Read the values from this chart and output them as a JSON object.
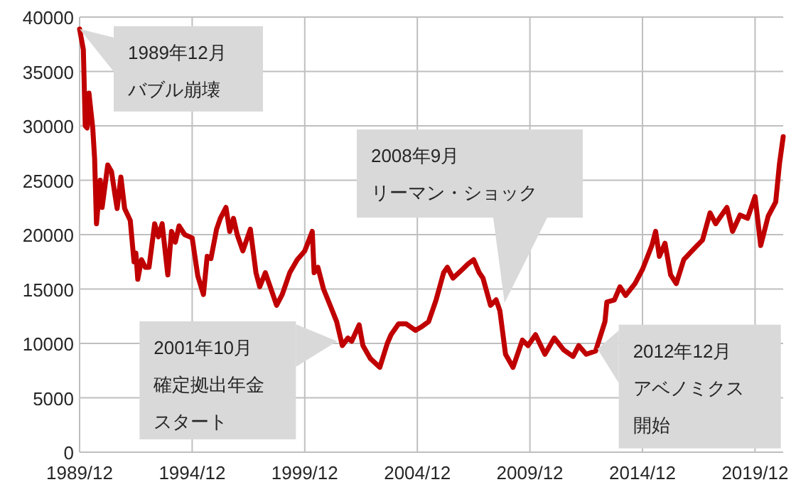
{
  "chart_data": {
    "type": "line",
    "x": [
      "1989-12",
      "1990-02",
      "1990-03",
      "1990-04",
      "1990-05",
      "1990-07",
      "1990-08",
      "1990-09",
      "1990-11",
      "1990-12",
      "1991-03",
      "1991-05",
      "1991-07",
      "1991-08",
      "1991-10",
      "1991-12",
      "1992-03",
      "1992-05",
      "1992-06",
      "1992-07",
      "1992-09",
      "1992-11",
      "1993-01",
      "1993-04",
      "1993-06",
      "1993-08",
      "1993-11",
      "1994-01",
      "1994-03",
      "1994-05",
      "1994-08",
      "1994-12",
      "1995-03",
      "1995-06",
      "1995-08",
      "1995-10",
      "1996-01",
      "1996-03",
      "1996-06",
      "1996-08",
      "1996-10",
      "1996-12",
      "1997-03",
      "1997-07",
      "1997-10",
      "1997-12",
      "1998-03",
      "1998-05",
      "1998-09",
      "1998-12",
      "1999-04",
      "1999-08",
      "1999-12",
      "2000-04",
      "2000-05",
      "2000-07",
      "2000-10",
      "2001-02",
      "2001-05",
      "2001-08",
      "2001-11",
      "2002-01",
      "2002-05",
      "2002-07",
      "2002-11",
      "2003-04",
      "2003-08",
      "2003-10",
      "2004-02",
      "2004-06",
      "2004-11",
      "2005-02",
      "2005-06",
      "2005-10",
      "2006-02",
      "2006-04",
      "2006-07",
      "2006-12",
      "2007-03",
      "2007-06",
      "2007-09",
      "2007-11",
      "2008-03",
      "2008-06",
      "2008-08",
      "2008-11",
      "2009-03",
      "2009-08",
      "2009-11",
      "2010-03",
      "2010-08",
      "2011-01",
      "2011-06",
      "2011-11",
      "2012-02",
      "2012-06",
      "2012-11",
      "2013-04",
      "2013-05",
      "2013-09",
      "2013-12",
      "2014-03",
      "2014-08",
      "2014-12",
      "2015-05",
      "2015-07",
      "2015-09",
      "2015-12",
      "2016-03",
      "2016-06",
      "2016-10",
      "2017-04",
      "2017-08",
      "2017-12",
      "2018-03",
      "2018-09",
      "2018-12",
      "2019-04",
      "2019-08",
      "2019-12",
      "2020-03",
      "2020-07",
      "2020-11",
      "2021-01",
      "2021-03"
    ],
    "series": [
      {
        "color": "#c00000",
        "values": [
          38900,
          37000,
          30000,
          29800,
          33000,
          29800,
          27000,
          21000,
          25000,
          22500,
          26400,
          25800,
          23500,
          22400,
          25300,
          22400,
          21300,
          17500,
          18300,
          15900,
          17700,
          17000,
          17000,
          21000,
          19800,
          21000,
          16300,
          20300,
          19300,
          20800,
          20000,
          19700,
          16200,
          14500,
          18000,
          17800,
          20500,
          21500,
          22500,
          20300,
          21500,
          20000,
          18500,
          20500,
          16500,
          15200,
          16500,
          15500,
          13500,
          14500,
          16500,
          17700,
          18500,
          20300,
          16500,
          17000,
          15000,
          13300,
          12000,
          9800,
          10500,
          10200,
          11700,
          9800,
          8600,
          7800,
          10000,
          10800,
          11800,
          11800,
          11200,
          11500,
          12000,
          14000,
          16500,
          17000,
          16000,
          16800,
          17300,
          17700,
          16500,
          16000,
          13500,
          14000,
          13000,
          9000,
          7800,
          10300,
          9800,
          10800,
          9000,
          10500,
          9400,
          8800,
          9800,
          9000,
          9300,
          12000,
          13800,
          14000,
          15200,
          14400,
          15500,
          16800,
          19000,
          20300,
          18000,
          19200,
          16300,
          15500,
          17700,
          18800,
          19500,
          22000,
          21000,
          22500,
          20300,
          21800,
          21500,
          23500,
          19000,
          21700,
          23000,
          26500,
          29000
        ]
      }
    ],
    "xlim": [
      "1989-12",
      "2021-03"
    ],
    "xticks": [
      {
        "value": "1989-12",
        "label": "1989/12"
      },
      {
        "value": "1994-12",
        "label": "1994/12"
      },
      {
        "value": "1999-12",
        "label": "1999/12"
      },
      {
        "value": "2004-12",
        "label": "2004/12"
      },
      {
        "value": "2009-12",
        "label": "2009/12"
      },
      {
        "value": "2014-12",
        "label": "2014/12"
      },
      {
        "value": "2019-12",
        "label": "2019/12"
      }
    ],
    "ylim": [
      0,
      40000
    ],
    "yticks": [
      0,
      5000,
      10000,
      15000,
      20000,
      25000,
      30000,
      35000,
      40000
    ],
    "grid": true,
    "marker": "none",
    "line_style": "solid",
    "annotations": [
      {
        "text": "1989年12月バブル崩壊",
        "x": "1989-12",
        "y": 38900
      },
      "2008年9月リーマン・ショック",
      "2001年10月確定拠出年金スタート",
      {
        "text": "2012年12月アベノミクス開始",
        "x": "2012-12",
        "y": 9500
      }
    ]
  }
}
